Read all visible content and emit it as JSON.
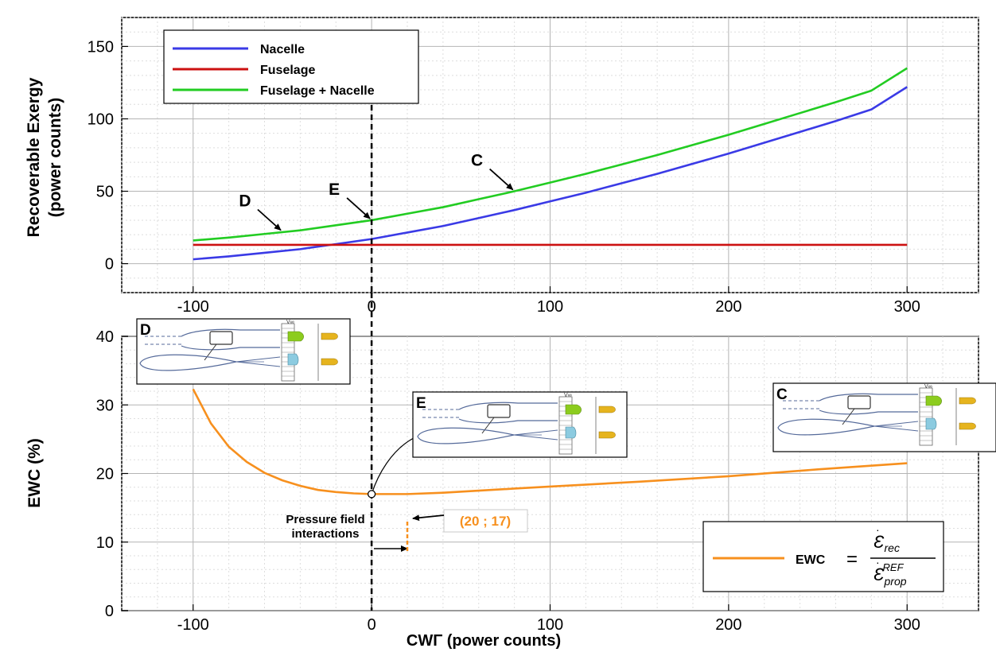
{
  "colors": {
    "nacelle": "#3a3ae6",
    "fuselage": "#cc1111",
    "fuselage_nacelle": "#22cc22",
    "ewc": "#f7901e",
    "grid_major": "#b4b4b4",
    "grid_minor": "#dedede",
    "inset_green": "#8ccc1e",
    "inset_blue": "#8ccbe0",
    "inset_gold": "#e6b41e",
    "inset_line": "#556a9a"
  },
  "chart_data": [
    {
      "type": "line",
      "title": "",
      "xlabel": "",
      "ylabel_line1": "Recoverable Exergy",
      "ylabel_line2": "(power counts)",
      "xlim": [
        -140,
        340
      ],
      "ylim": [
        -20,
        170
      ],
      "xticks": [
        -100,
        0,
        100,
        200,
        300
      ],
      "xtick_labels": [
        "-100",
        "0",
        "100",
        "200",
        "300"
      ],
      "yticks": [
        0,
        50,
        100,
        150
      ],
      "ytick_labels": [
        "0",
        "50",
        "100",
        "150"
      ],
      "grid": true,
      "legend_position": "top-left",
      "series": [
        {
          "name": "Nacelle",
          "color_key": "nacelle",
          "x": [
            -100,
            -80,
            -60,
            -40,
            -20,
            0,
            20,
            40,
            60,
            80,
            100,
            120,
            140,
            160,
            180,
            200,
            220,
            240,
            260,
            280,
            300
          ],
          "y": [
            3,
            5,
            7.5,
            10,
            13.5,
            17,
            21.5,
            26,
            31.5,
            37,
            43,
            49,
            55.5,
            62,
            69,
            76,
            83.5,
            91,
            98.5,
            106.5,
            122
          ]
        },
        {
          "name": "Fuselage",
          "color_key": "fuselage",
          "x": [
            -100,
            300
          ],
          "y": [
            13,
            13
          ]
        },
        {
          "name": "Fuselage + Nacelle",
          "color_key": "fuselage_nacelle",
          "x": [
            -100,
            -80,
            -60,
            -40,
            -20,
            0,
            20,
            40,
            60,
            80,
            100,
            120,
            140,
            160,
            180,
            200,
            220,
            240,
            260,
            280,
            300
          ],
          "y": [
            16,
            18,
            20.5,
            23,
            26.5,
            30,
            34.5,
            39,
            44.5,
            50,
            56,
            62,
            68.5,
            75,
            82,
            89,
            96.5,
            104,
            111.5,
            119.5,
            135
          ]
        }
      ],
      "annotations": [
        {
          "text": "D",
          "x": -50,
          "y": 22
        },
        {
          "text": "E",
          "x": 0,
          "y": 30
        },
        {
          "text": "C",
          "x": 80,
          "y": 50
        }
      ],
      "vline_x": 0
    },
    {
      "type": "line",
      "title": "",
      "xlabel": "CWΓ (power counts)",
      "ylabel": "EWC (%)",
      "xlim": [
        -140,
        340
      ],
      "ylim": [
        0,
        40
      ],
      "xticks": [
        -100,
        0,
        100,
        200,
        300
      ],
      "xtick_labels": [
        "-100",
        "0",
        "100",
        "200",
        "300"
      ],
      "yticks": [
        0,
        10,
        20,
        30,
        40
      ],
      "ytick_labels": [
        "0",
        "10",
        "20",
        "30",
        "40"
      ],
      "grid": true,
      "legend_position": "bottom-right",
      "series": [
        {
          "name": "EWC",
          "color_key": "ewc",
          "x": [
            -100,
            -90,
            -80,
            -70,
            -60,
            -50,
            -40,
            -30,
            -20,
            -10,
            0,
            10,
            20,
            40,
            60,
            80,
            100,
            150,
            200,
            250,
            300
          ],
          "y": [
            32.3,
            27.3,
            23.9,
            21.7,
            20.1,
            19.0,
            18.2,
            17.6,
            17.3,
            17.1,
            17.0,
            17.0,
            17.0,
            17.2,
            17.5,
            17.8,
            18.1,
            18.8,
            19.6,
            20.6,
            21.5
          ]
        }
      ],
      "legend_formula": "= Ėrec / Ėprop REF",
      "minimum_point": {
        "x": 20,
        "y": 17,
        "label": "(20 ; 17)"
      },
      "marker_point": {
        "x": 0,
        "y": 17
      },
      "annotation_pressure_line1": "Pressure field",
      "annotation_pressure_line2": "interactions",
      "insets": [
        {
          "label": "D",
          "near_x": -100
        },
        {
          "label": "E",
          "near_x": 0
        },
        {
          "label": "C",
          "near_x": 300
        }
      ],
      "vline_x": 0
    }
  ]
}
